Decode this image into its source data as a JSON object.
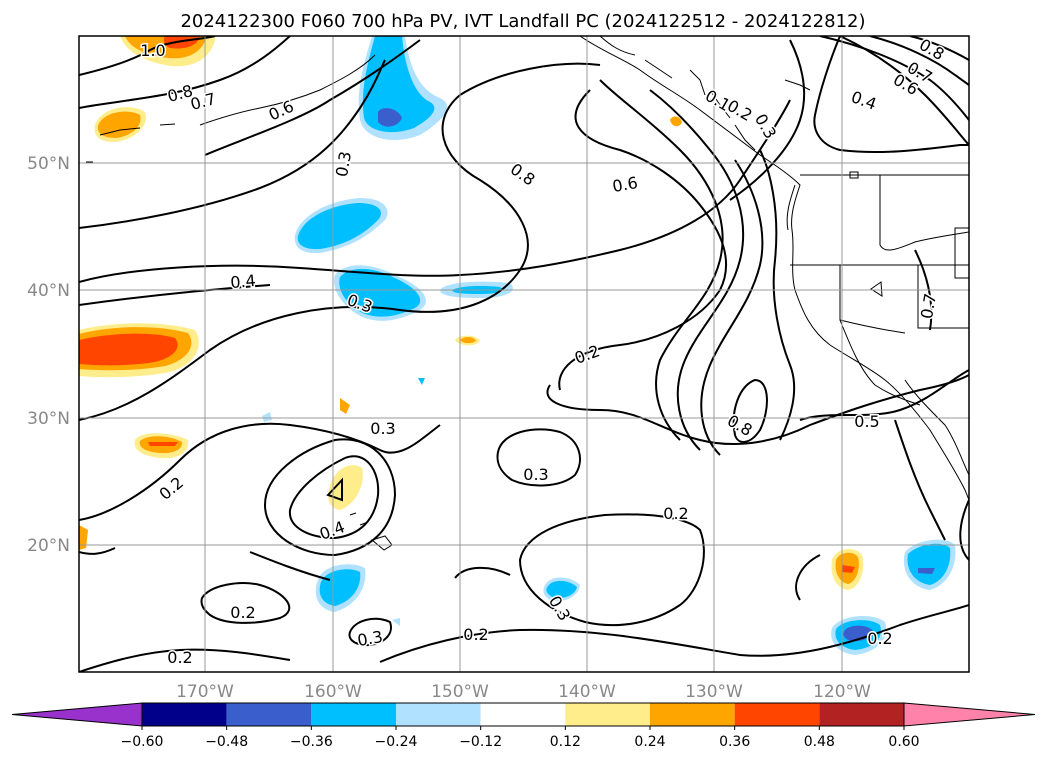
{
  "title": "2024122300 F060 700 hPa PV, IVT Landfall PC (2024122512 - 2024122812)",
  "lat_labels": [
    "50°N",
    "40°N",
    "30°N",
    "20°N"
  ],
  "lon_labels": [
    "170°W",
    "160°W",
    "150°W",
    "140°W",
    "130°W",
    "120°W"
  ],
  "contour_labels": [
    "1.0",
    "0.8",
    "0.7",
    "0.6",
    "0.4",
    "0.8",
    "0.6",
    "0.3",
    "0.4",
    "0.3",
    "0.2",
    "0.3",
    "0.3",
    "0.2",
    "0.2",
    "0.4",
    "0.2",
    "0.2",
    "0.3",
    "0.3",
    "0.2",
    "0.2",
    "0.8",
    "0.5",
    "0.7",
    "0.8",
    "0.7",
    "0.6",
    "0.4",
    "0.3",
    "0.1",
    "0.2"
  ],
  "colorbar": {
    "ticks": [
      "−0.60",
      "−0.48",
      "−0.36",
      "−0.24",
      "−0.12",
      "0.12",
      "0.24",
      "0.36",
      "0.48",
      "0.60"
    ],
    "colors": [
      "#9932cc",
      "#00008b",
      "#3a5fcd",
      "#00bfff",
      "#b0e2ff",
      "#ffffff",
      "#ffec8b",
      "#ffa500",
      "#ff4500",
      "#b22222",
      "#ff82ab"
    ]
  }
}
